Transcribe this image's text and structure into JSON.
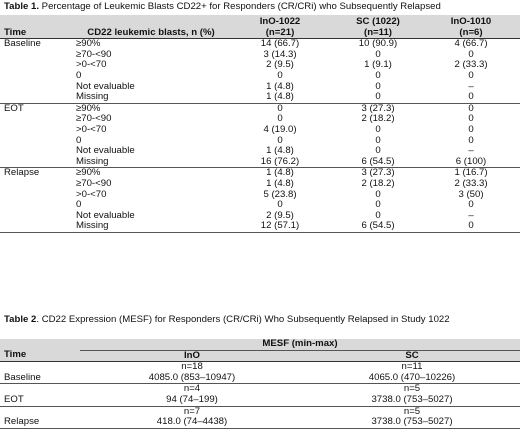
{
  "table1": {
    "caption_label": "Table 1.",
    "caption_text": " Percentage of Leukemic Blasts CD22+ for Responders (CR/CRi) who Subsequently Relapsed",
    "headers": {
      "time": "Time",
      "category": "CD22 leukemic blasts, n (%)",
      "col1_name": "InO-1022",
      "col1_n": "(n=21)",
      "col2_name": "SC (1022)",
      "col2_n": "(n=11)",
      "col3_name": "InO-1010",
      "col3_n": "(n=6)"
    },
    "groups": [
      {
        "time": "Baseline",
        "rows": [
          {
            "category": "≥90%",
            "ino1022": "14 (66.7)",
            "sc1022": "10 (90.9)",
            "ino1010": "4 (66.7)"
          },
          {
            "category": "≥70-<90",
            "ino1022": "3 (14.3)",
            "sc1022": "0",
            "ino1010": "0"
          },
          {
            "category": ">0-<70",
            "ino1022": "2 (9.5)",
            "sc1022": "1 (9.1)",
            "ino1010": "2 (33.3)"
          },
          {
            "category": "0",
            "ino1022": "0",
            "sc1022": "0",
            "ino1010": "0"
          },
          {
            "category": "Not evaluable",
            "ino1022": "1 (4.8)",
            "sc1022": "0",
            "ino1010": "–"
          },
          {
            "category": "Missing",
            "ino1022": "1 (4.8)",
            "sc1022": "0",
            "ino1010": "0"
          }
        ]
      },
      {
        "time": "EOT",
        "rows": [
          {
            "category": "≥90%",
            "ino1022": "0",
            "sc1022": "3 (27.3)",
            "ino1010": "0"
          },
          {
            "category": "≥70-<90",
            "ino1022": "0",
            "sc1022": "2 (18.2)",
            "ino1010": "0"
          },
          {
            "category": ">0-<70",
            "ino1022": "4 (19.0)",
            "sc1022": "0",
            "ino1010": "0"
          },
          {
            "category": "0",
            "ino1022": "0",
            "sc1022": "0",
            "ino1010": "0"
          },
          {
            "category": "Not evaluable",
            "ino1022": "1 (4.8)",
            "sc1022": "0",
            "ino1010": "–"
          },
          {
            "category": "Missing",
            "ino1022": "16 (76.2)",
            "sc1022": "6 (54.5)",
            "ino1010": "6 (100)"
          }
        ]
      },
      {
        "time": "Relapse",
        "rows": [
          {
            "category": "≥90%",
            "ino1022": "1 (4.8)",
            "sc1022": "3 (27.3)",
            "ino1010": "1 (16.7)"
          },
          {
            "category": "≥70-<90",
            "ino1022": "1 (4.8)",
            "sc1022": "2 (18.2)",
            "ino1010": "2 (33.3)"
          },
          {
            "category": ">0-<70",
            "ino1022": "5 (23.8)",
            "sc1022": "0",
            "ino1010": "3 (50)"
          },
          {
            "category": "0",
            "ino1022": "0",
            "sc1022": "0",
            "ino1010": "0"
          },
          {
            "category": "Not evaluable",
            "ino1022": "2 (9.5)",
            "sc1022": "0",
            "ino1010": "–"
          },
          {
            "category": "Missing",
            "ino1022": "12 (57.1)",
            "sc1022": "6 (54.5)",
            "ino1010": "0"
          }
        ]
      }
    ]
  },
  "table2": {
    "caption_label": "Table 2",
    "caption_text": ". CD22 Expression (MESF) for Responders (CR/CRi) Who Subsequently Relapsed in Study 1022",
    "headers": {
      "mesf": "MESF (min-max)",
      "time": "Time",
      "ino": "InO",
      "sc": "SC"
    },
    "groups": [
      {
        "time": "Baseline",
        "ino_n": "n=18",
        "ino_value": "4085.0 (853–10947)",
        "sc_n": "n=11",
        "sc_value": "4065.0 (470–10226)"
      },
      {
        "time": "EOT",
        "ino_n": "n=4",
        "ino_value": "94 (74–199)",
        "sc_n": "n=5",
        "sc_value": "3738.0 (753–5027)"
      },
      {
        "time": "Relapse",
        "ino_n": "n=7",
        "ino_value": "418.0 (74–4438)",
        "sc_n": "n=5",
        "sc_value": "3738.0 (753–5027)"
      }
    ]
  }
}
